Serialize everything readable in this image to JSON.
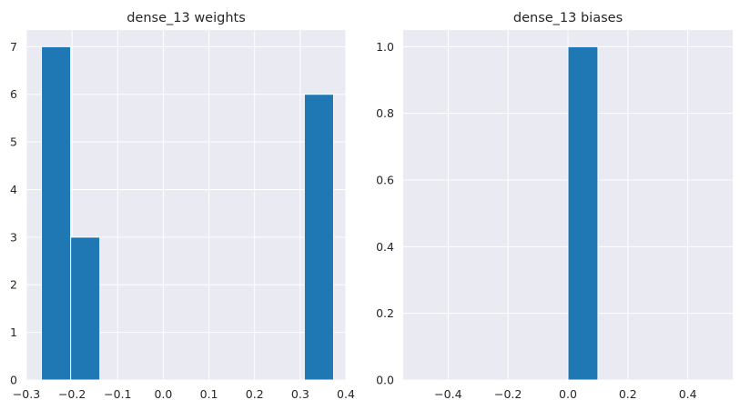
{
  "theme": {
    "background": "#ffffff",
    "plot_background": "#eaeaf2",
    "grid_color": "#ffffff",
    "bar_color": "#1f77b4",
    "bar_edge_color": "#ffffff",
    "text_color": "#262626"
  },
  "chart_data": [
    {
      "type": "bar",
      "subtype": "histogram",
      "title": "dense_13 weights",
      "xlabel": "",
      "ylabel": "",
      "xlim": [
        -0.3,
        0.4
      ],
      "ylim": [
        0,
        7.35
      ],
      "xticks": [
        -0.3,
        -0.2,
        -0.1,
        0.0,
        0.1,
        0.2,
        0.3,
        0.4
      ],
      "xtick_labels": [
        "−0.3",
        "−0.2",
        "−0.1",
        "0.0",
        "0.1",
        "0.2",
        "0.3",
        "0.4"
      ],
      "yticks": [
        0,
        1,
        2,
        3,
        4,
        5,
        6,
        7
      ],
      "ytick_labels": [
        "0",
        "1",
        "2",
        "3",
        "4",
        "5",
        "6",
        "7"
      ],
      "grid": true,
      "bins": [
        {
          "x0": -0.267,
          "x1": -0.203,
          "count": 7
        },
        {
          "x0": -0.203,
          "x1": -0.139,
          "count": 3
        },
        {
          "x0": -0.139,
          "x1": -0.075,
          "count": 0
        },
        {
          "x0": -0.075,
          "x1": -0.011,
          "count": 0
        },
        {
          "x0": -0.011,
          "x1": 0.053,
          "count": 0
        },
        {
          "x0": 0.053,
          "x1": 0.117,
          "count": 0
        },
        {
          "x0": 0.117,
          "x1": 0.181,
          "count": 0
        },
        {
          "x0": 0.181,
          "x1": 0.245,
          "count": 0
        },
        {
          "x0": 0.245,
          "x1": 0.309,
          "count": 0
        },
        {
          "x0": 0.309,
          "x1": 0.373,
          "count": 6
        }
      ]
    },
    {
      "type": "bar",
      "subtype": "histogram",
      "title": "dense_13 biases",
      "xlabel": "",
      "ylabel": "",
      "xlim": [
        -0.55,
        0.55
      ],
      "ylim": [
        0,
        1.05
      ],
      "xticks": [
        -0.4,
        -0.2,
        0.0,
        0.2,
        0.4
      ],
      "xtick_labels": [
        "−0.4",
        "−0.2",
        "0.0",
        "0.2",
        "0.4"
      ],
      "yticks": [
        0,
        0.2,
        0.4,
        0.6,
        0.8,
        1.0
      ],
      "ytick_labels": [
        "0.0",
        "0.2",
        "0.4",
        "0.6",
        "0.8",
        "1.0"
      ],
      "grid": true,
      "bins": [
        {
          "x0": 0.0,
          "x1": 0.1,
          "count": 1
        }
      ]
    }
  ]
}
